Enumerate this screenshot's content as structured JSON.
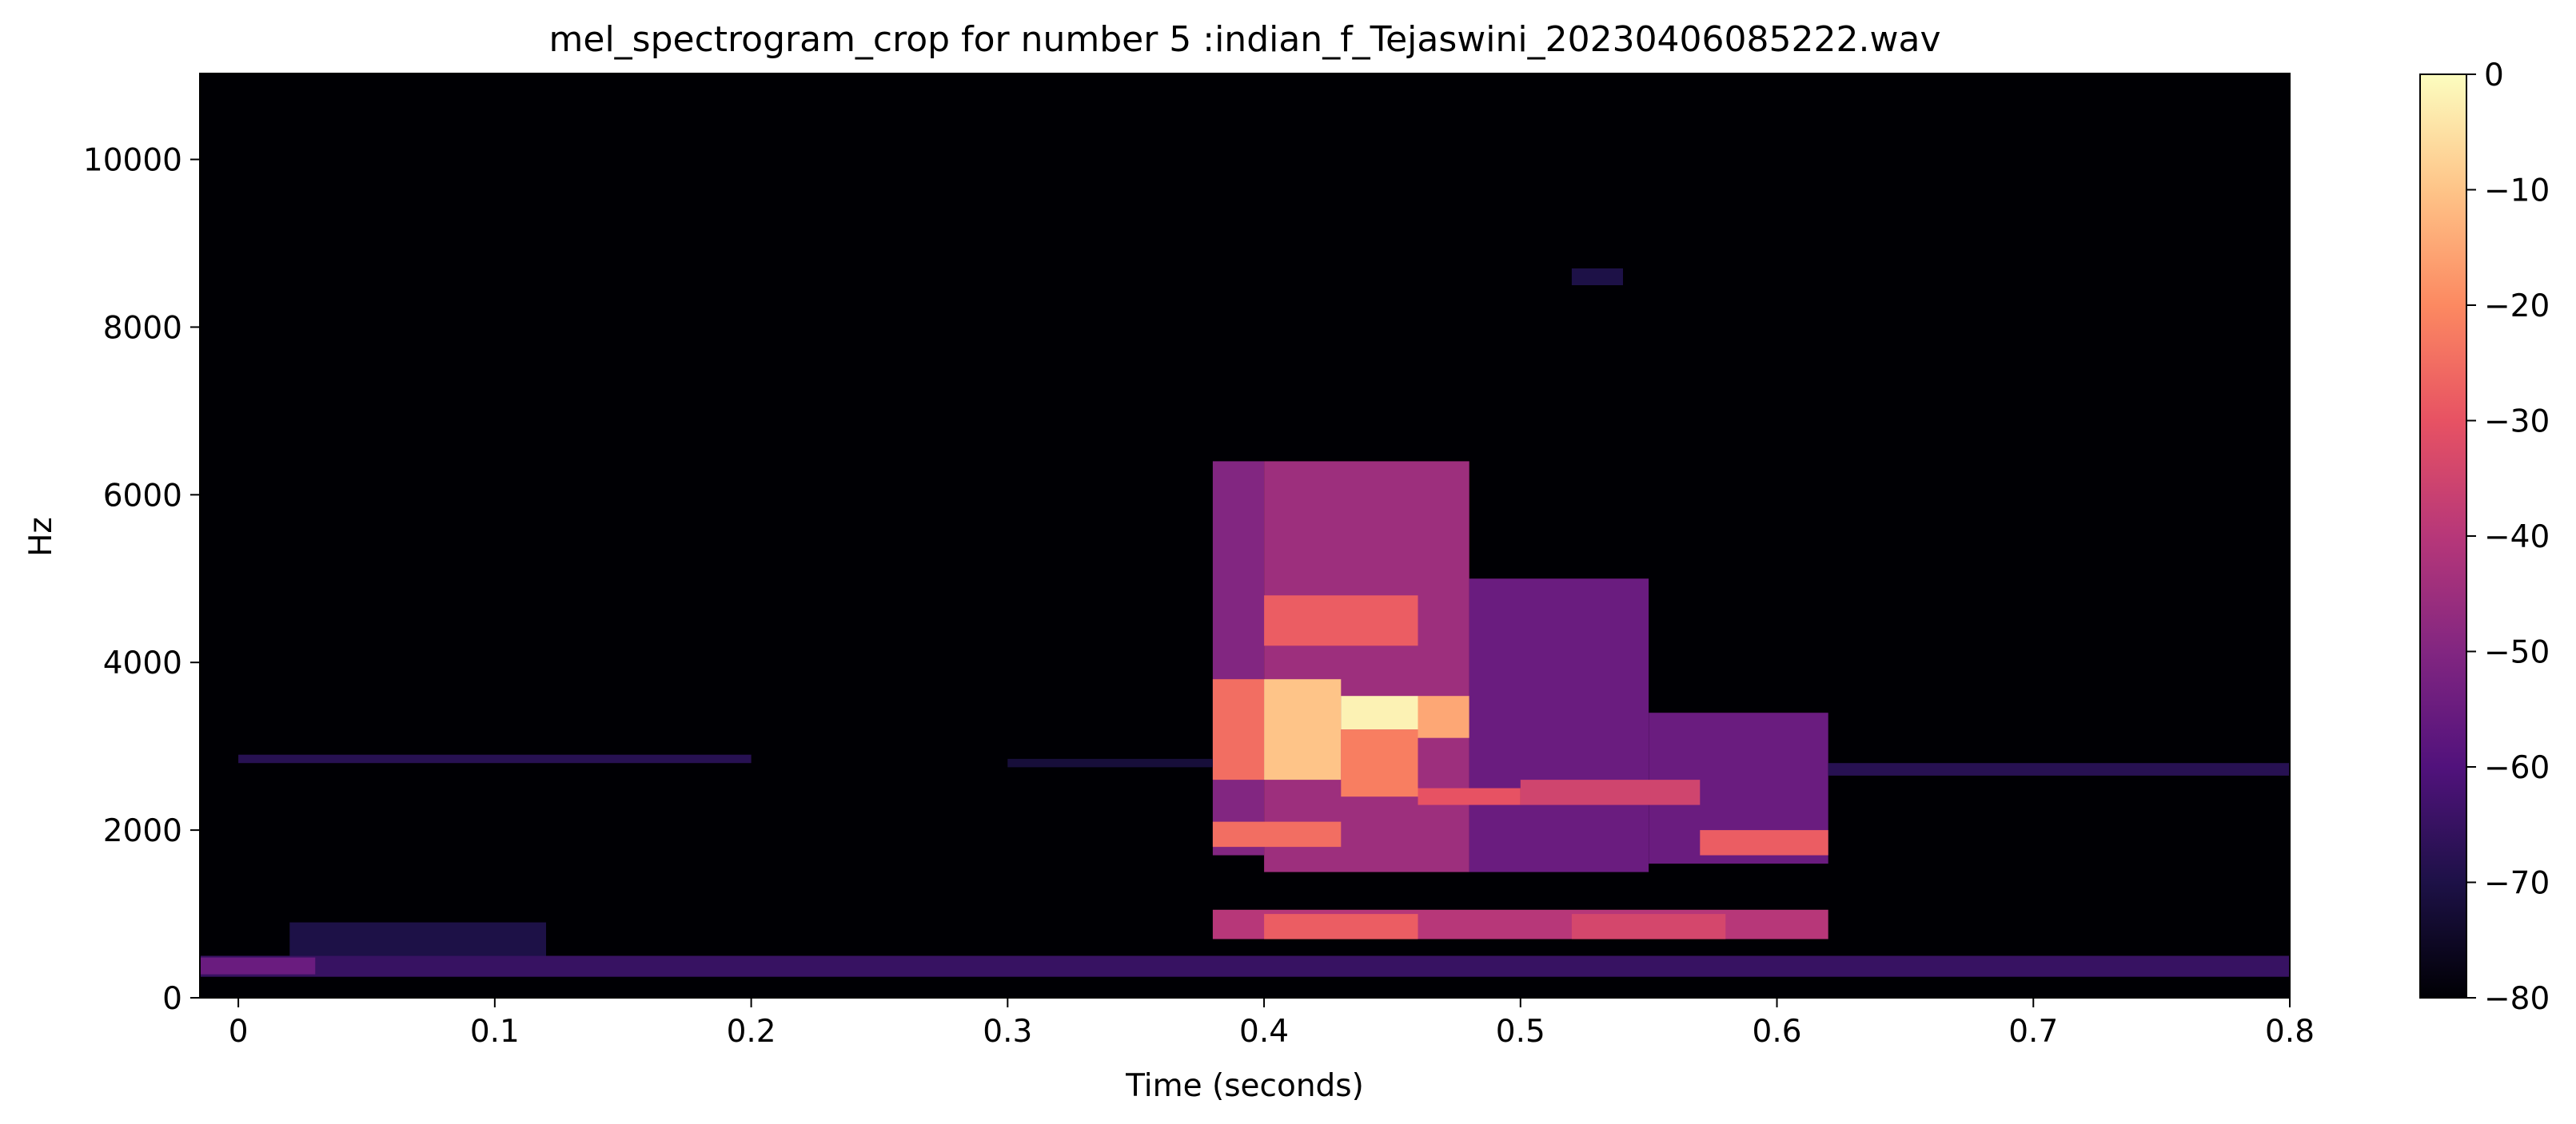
{
  "chart_data": {
    "type": "heatmap",
    "title": "mel_spectrogram_crop for number 5 :indian_f_Tejaswini_20230406085222.wav",
    "xlabel": "Time (seconds)",
    "ylabel": "Hz",
    "xlim": [
      -0.015,
      0.8
    ],
    "ylim": [
      0,
      11025
    ],
    "x_ticks": [
      0,
      0.1,
      0.2,
      0.3,
      0.4,
      0.5,
      0.6,
      0.7,
      0.8
    ],
    "x_tick_labels": [
      "0",
      "0.1",
      "0.2",
      "0.3",
      "0.4",
      "0.5",
      "0.6",
      "0.7",
      "0.8"
    ],
    "y_ticks": [
      0,
      2000,
      4000,
      6000,
      8000,
      10000
    ],
    "y_tick_labels": [
      "0",
      "2000",
      "4000",
      "6000",
      "8000",
      "10000"
    ],
    "colorbar": {
      "colormap": "magma",
      "range": [
        -80,
        0
      ],
      "ticks": [
        0,
        -10,
        -20,
        -30,
        -40,
        -50,
        -60,
        -70,
        -80
      ],
      "tick_labels": [
        "0",
        "−10",
        "−20",
        "−30",
        "−40",
        "−50",
        "−60",
        "−70",
        "−80"
      ]
    },
    "frame_duration_s": 0.0232,
    "regions": [
      {
        "t": [
          0.38,
          0.4
        ],
        "f": [
          1700,
          6400
        ],
        "db": -50
      },
      {
        "t": [
          0.4,
          0.48
        ],
        "f": [
          1500,
          6400
        ],
        "db": -45
      },
      {
        "t": [
          0.48,
          0.55
        ],
        "f": [
          1500,
          5000
        ],
        "db": -55
      },
      {
        "t": [
          0.55,
          0.62
        ],
        "f": [
          1600,
          3400
        ],
        "db": -55
      },
      {
        "t": [
          0.38,
          0.4
        ],
        "f": [
          2600,
          3800
        ],
        "db": -25
      },
      {
        "t": [
          0.4,
          0.43
        ],
        "f": [
          2600,
          3800
        ],
        "db": -10
      },
      {
        "t": [
          0.43,
          0.46
        ],
        "f": [
          3200,
          3600
        ],
        "db": -2
      },
      {
        "t": [
          0.43,
          0.46
        ],
        "f": [
          2400,
          3200
        ],
        "db": -22
      },
      {
        "t": [
          0.46,
          0.48
        ],
        "f": [
          3100,
          3600
        ],
        "db": -15
      },
      {
        "t": [
          0.38,
          0.43
        ],
        "f": [
          1800,
          2100
        ],
        "db": -25
      },
      {
        "t": [
          0.4,
          0.46
        ],
        "f": [
          4200,
          4800
        ],
        "db": -28
      },
      {
        "t": [
          0.46,
          0.5
        ],
        "f": [
          2300,
          2500
        ],
        "db": -30
      },
      {
        "t": [
          0.5,
          0.57
        ],
        "f": [
          2300,
          2600
        ],
        "db": -35
      },
      {
        "t": [
          0.57,
          0.62
        ],
        "f": [
          1700,
          2000
        ],
        "db": -28
      },
      {
        "t": [
          0.38,
          0.62
        ],
        "f": [
          700,
          1050
        ],
        "db": -40
      },
      {
        "t": [
          0.4,
          0.46
        ],
        "f": [
          700,
          1000
        ],
        "db": -28
      },
      {
        "t": [
          0.52,
          0.58
        ],
        "f": [
          700,
          1000
        ],
        "db": -34
      },
      {
        "t": [
          -0.015,
          0.8
        ],
        "f": [
          250,
          500
        ],
        "db": -65
      },
      {
        "t": [
          -0.015,
          0.03
        ],
        "f": [
          280,
          480
        ],
        "db": -55
      },
      {
        "t": [
          0.02,
          0.12
        ],
        "f": [
          500,
          900
        ],
        "db": -70
      },
      {
        "t": [
          0.0,
          0.2
        ],
        "f": [
          2800,
          2900
        ],
        "db": -68
      },
      {
        "t": [
          0.3,
          0.38
        ],
        "f": [
          2750,
          2850
        ],
        "db": -72
      },
      {
        "t": [
          0.62,
          0.8
        ],
        "f": [
          2650,
          2800
        ],
        "db": -68
      },
      {
        "t": [
          0.52,
          0.54
        ],
        "f": [
          8500,
          8700
        ],
        "db": -70
      }
    ]
  }
}
